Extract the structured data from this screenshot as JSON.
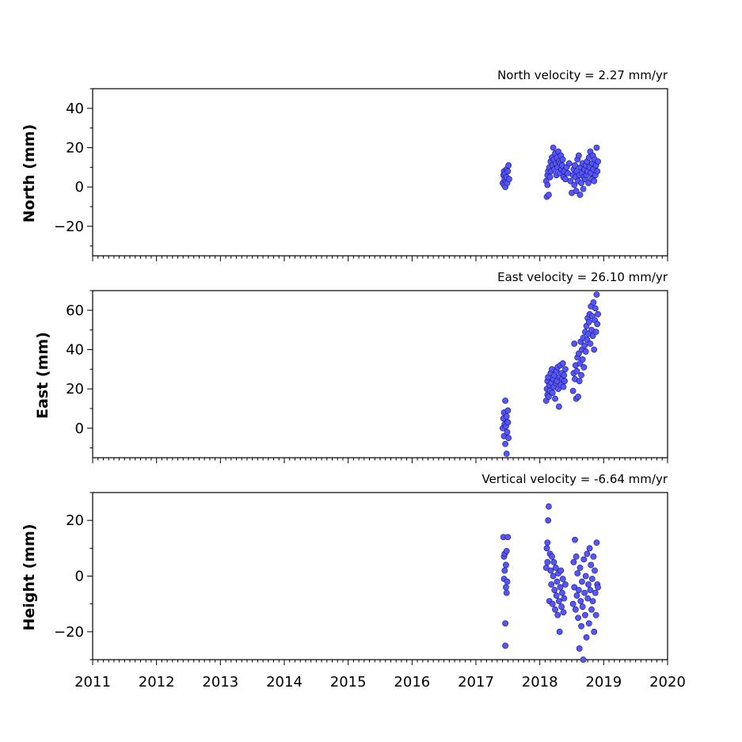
{
  "chart_data": [
    {
      "type": "scatter",
      "id": "north",
      "title": "North velocity = 2.27 mm/yr",
      "ylabel": "North (mm)",
      "xlim": [
        2011,
        2020
      ],
      "ylim": [
        -35,
        50
      ],
      "yticks": [
        40,
        20,
        0,
        -20
      ],
      "ytick_labels": [
        "40",
        "20",
        "0",
        "−20"
      ],
      "series": [
        {
          "x": [
            2017.42,
            2017.43,
            2017.44,
            2017.44,
            2017.45,
            2017.46,
            2017.46,
            2017.47,
            2017.48,
            2017.48,
            2017.49,
            2017.5,
            2017.51,
            2017.52,
            2018.1,
            2018.11,
            2018.12,
            2018.12,
            2018.13,
            2018.14,
            2018.15,
            2018.16,
            2018.17,
            2018.18,
            2018.19,
            2018.2,
            2018.21,
            2018.22,
            2018.23,
            2018.24,
            2018.25,
            2018.26,
            2018.27,
            2018.28,
            2018.29,
            2018.3,
            2018.31,
            2018.32,
            2018.33,
            2018.34,
            2018.35,
            2018.36,
            2018.37,
            2018.38,
            2018.4,
            2018.42,
            2018.44,
            2018.46,
            2018.48,
            2018.5,
            2018.52,
            2018.53,
            2018.54,
            2018.55,
            2018.56,
            2018.57,
            2018.58,
            2018.59,
            2018.6,
            2018.61,
            2018.62,
            2018.63,
            2018.64,
            2018.65,
            2018.66,
            2018.67,
            2018.68,
            2018.69,
            2018.7,
            2018.71,
            2018.72,
            2018.73,
            2018.74,
            2018.75,
            2018.76,
            2018.77,
            2018.78,
            2018.79,
            2018.8,
            2018.81,
            2018.82,
            2018.83,
            2018.84,
            2018.85,
            2018.86,
            2018.87,
            2018.88,
            2018.89,
            2018.9,
            2018.91
          ],
          "y": [
            2,
            6,
            1,
            8,
            4,
            0,
            7,
            3,
            9,
            5,
            2,
            8,
            11,
            4,
            3,
            -5,
            6,
            1,
            8,
            -4,
            10,
            5,
            13,
            8,
            15,
            11,
            20,
            14,
            9,
            17,
            12,
            6,
            15,
            10,
            18,
            13,
            7,
            12,
            16,
            9,
            11,
            14,
            5,
            8,
            4,
            10,
            7,
            12,
            3,
            -3,
            6,
            9,
            1,
            11,
            5,
            -2,
            8,
            14,
            3,
            16,
            6,
            -4,
            10,
            2,
            7,
            12,
            -1,
            5,
            9,
            4,
            11,
            6,
            13,
            8,
            2,
            15,
            10,
            18,
            7,
            4,
            12,
            16,
            9,
            3,
            14,
            6,
            11,
            20,
            8,
            13
          ]
        }
      ]
    },
    {
      "type": "scatter",
      "id": "east",
      "title": "East velocity = 26.10 mm/yr",
      "ylabel": "East (mm)",
      "xlim": [
        2011,
        2020
      ],
      "ylim": [
        -15,
        70
      ],
      "yticks": [
        60,
        40,
        20,
        0
      ],
      "ytick_labels": [
        "60",
        "40",
        "20",
        "0"
      ],
      "series": [
        {
          "x": [
            2017.42,
            2017.43,
            2017.44,
            2017.44,
            2017.45,
            2017.46,
            2017.46,
            2017.47,
            2017.48,
            2017.48,
            2017.49,
            2017.5,
            2017.5,
            2017.51,
            2018.1,
            2018.11,
            2018.12,
            2018.12,
            2018.13,
            2018.14,
            2018.15,
            2018.16,
            2018.17,
            2018.18,
            2018.19,
            2018.2,
            2018.21,
            2018.22,
            2018.23,
            2018.24,
            2018.25,
            2018.26,
            2018.27,
            2018.28,
            2018.29,
            2018.3,
            2018.31,
            2018.32,
            2018.33,
            2018.34,
            2018.35,
            2018.36,
            2018.37,
            2018.38,
            2018.39,
            2018.4,
            2018.52,
            2018.53,
            2018.54,
            2018.55,
            2018.56,
            2018.57,
            2018.58,
            2018.59,
            2018.6,
            2018.61,
            2018.62,
            2018.63,
            2018.64,
            2018.65,
            2018.66,
            2018.67,
            2018.68,
            2018.69,
            2018.7,
            2018.71,
            2018.72,
            2018.73,
            2018.74,
            2018.75,
            2018.76,
            2018.77,
            2018.78,
            2018.79,
            2018.8,
            2018.81,
            2018.82,
            2018.83,
            2018.84,
            2018.85,
            2018.86,
            2018.87,
            2018.88,
            2018.89,
            2018.9,
            2018.91
          ],
          "y": [
            0,
            5,
            -4,
            8,
            2,
            -8,
            14,
            1,
            6,
            -13,
            -2,
            3,
            9,
            -5,
            14,
            20,
            17,
            24,
            26,
            16,
            22,
            19,
            28,
            23,
            30,
            18,
            25,
            21,
            27,
            15,
            23,
            29,
            24,
            31,
            20,
            11,
            26,
            32,
            22,
            28,
            25,
            33,
            21,
            27,
            24,
            30,
            19,
            28,
            43,
            25,
            32,
            15,
            29,
            36,
            16,
            38,
            24,
            33,
            44,
            27,
            40,
            35,
            46,
            31,
            42,
            49,
            39,
            52,
            45,
            56,
            48,
            54,
            58,
            43,
            62,
            50,
            57,
            47,
            64,
            40,
            55,
            61,
            49,
            68,
            53,
            58
          ]
        }
      ]
    },
    {
      "type": "scatter",
      "id": "height",
      "title": "Vertical velocity = -6.64 mm/yr",
      "ylabel": "Height (mm)",
      "xlabel_ticks": [
        "2011",
        "2012",
        "2013",
        "2014",
        "2015",
        "2016",
        "2017",
        "2018",
        "2019",
        "2020"
      ],
      "xlim": [
        2011,
        2020
      ],
      "ylim": [
        -30,
        30
      ],
      "yticks": [
        20,
        0,
        -20
      ],
      "ytick_labels": [
        "20",
        "0",
        "−20"
      ],
      "series": [
        {
          "x": [
            2017.43,
            2017.44,
            2017.44,
            2017.45,
            2017.45,
            2017.46,
            2017.46,
            2017.47,
            2017.47,
            2017.48,
            2017.48,
            2017.49,
            2017.5,
            2018.1,
            2018.11,
            2018.12,
            2018.12,
            2018.13,
            2018.14,
            2018.15,
            2018.16,
            2018.17,
            2018.18,
            2018.19,
            2018.2,
            2018.21,
            2018.22,
            2018.23,
            2018.24,
            2018.25,
            2018.26,
            2018.27,
            2018.28,
            2018.29,
            2018.3,
            2018.31,
            2018.32,
            2018.33,
            2018.34,
            2018.35,
            2018.36,
            2018.37,
            2018.38,
            2018.4,
            2018.52,
            2018.53,
            2018.54,
            2018.55,
            2018.56,
            2018.57,
            2018.58,
            2018.59,
            2018.6,
            2018.61,
            2018.62,
            2018.63,
            2018.64,
            2018.65,
            2018.66,
            2018.67,
            2018.68,
            2018.69,
            2018.7,
            2018.71,
            2018.72,
            2018.73,
            2018.74,
            2018.75,
            2018.76,
            2018.77,
            2018.78,
            2018.79,
            2018.8,
            2018.81,
            2018.82,
            2018.83,
            2018.84,
            2018.85,
            2018.86,
            2018.87,
            2018.88,
            2018.89,
            2018.9,
            2018.91
          ],
          "y": [
            14,
            7,
            -1,
            8,
            2,
            -25,
            -17,
            4,
            -4,
            -6,
            9,
            -2,
            14,
            3,
            10,
            5,
            12,
            20,
            25,
            -9,
            8,
            2,
            -3,
            7,
            -10,
            0,
            5,
            -5,
            -12,
            3,
            -7,
            -2,
            -14,
            1,
            -9,
            -20,
            -4,
            2,
            -11,
            -6,
            -1,
            -13,
            -8,
            -3,
            -10,
            5,
            -4,
            13,
            -12,
            7,
            -7,
            1,
            -15,
            -5,
            -26,
            3,
            -9,
            -18,
            -2,
            -11,
            -30,
            6,
            -6,
            -14,
            0,
            -22,
            8,
            -8,
            -3,
            -17,
            10,
            -5,
            4,
            -12,
            -1,
            -9,
            7,
            -20,
            2,
            -6,
            -14,
            12,
            -3,
            -4
          ]
        }
      ]
    }
  ]
}
